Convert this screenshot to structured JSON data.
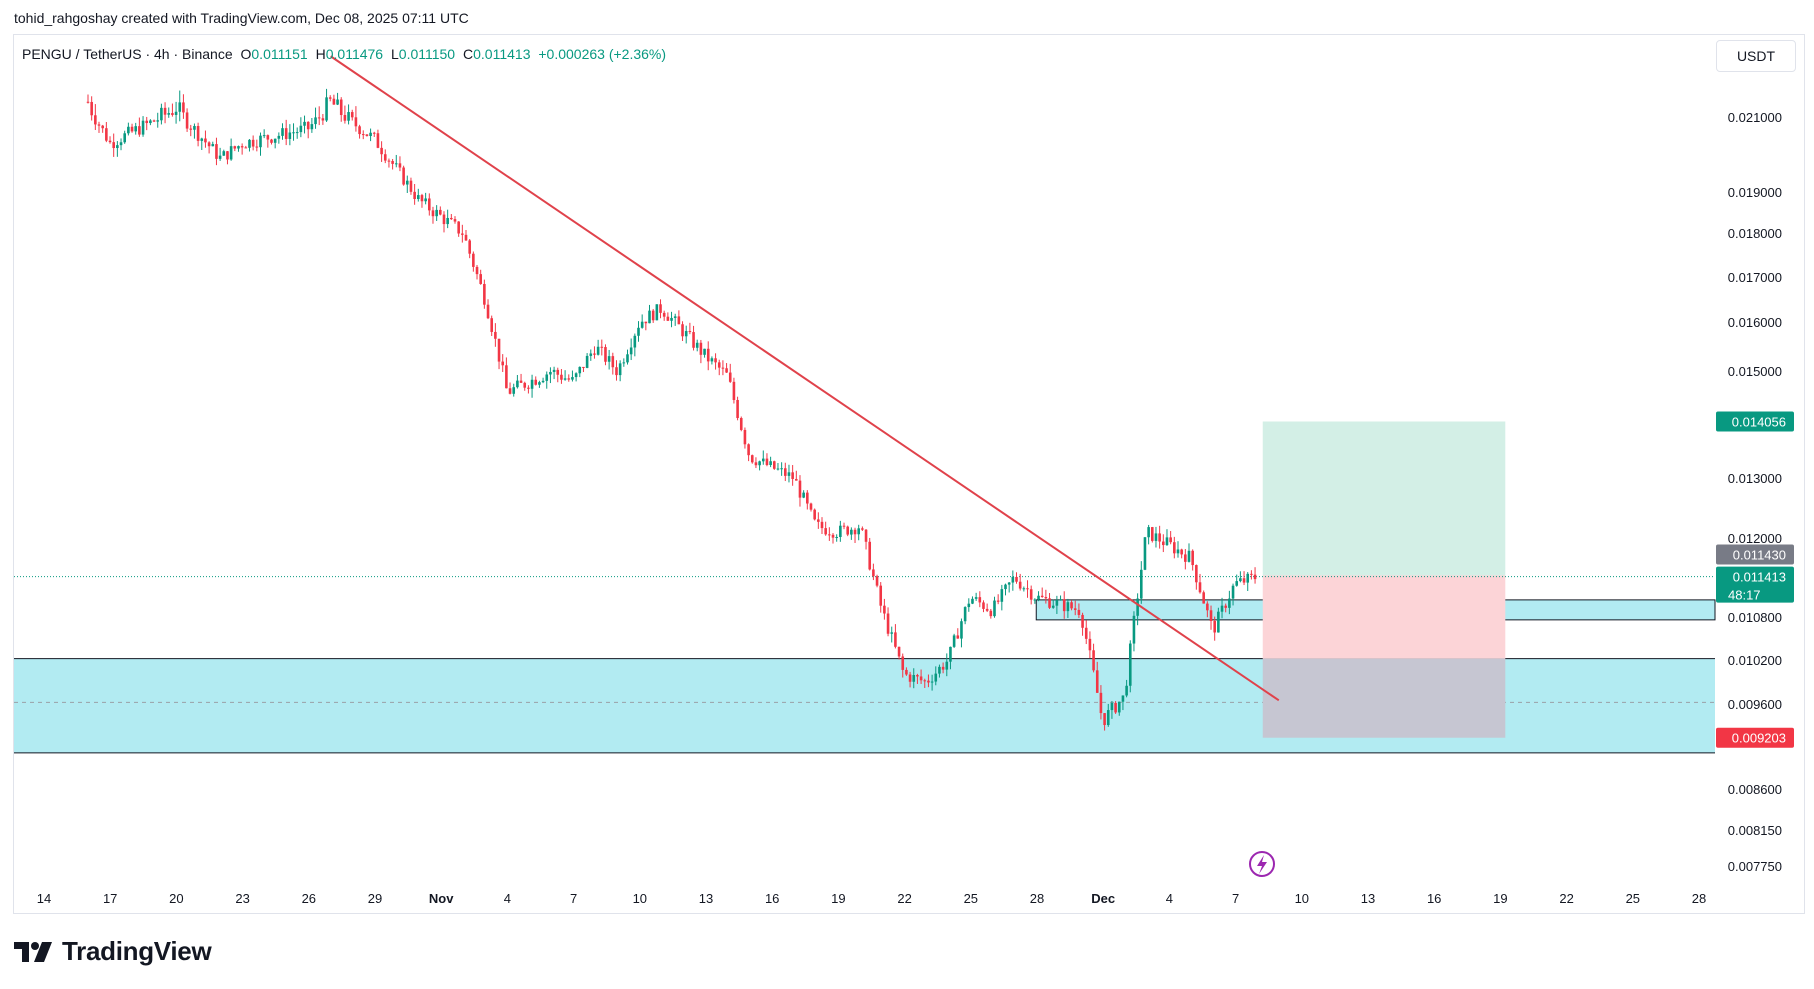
{
  "header": {
    "attribution": "tohid_rahgoshay created with TradingView.com, Dec 08, 2025 07:11 UTC"
  },
  "legend": {
    "symbol": "PENGU / TetherUS · 4h · Binance",
    "open_label": "O",
    "open": "0.011151",
    "high_label": "H",
    "high": "0.011476",
    "low_label": "L",
    "low": "0.011150",
    "close_label": "C",
    "close": "0.011413",
    "change": "+0.000263 (+2.36%)"
  },
  "currency_button": "USDT",
  "brand": {
    "name": "TradingView"
  },
  "colors": {
    "up": "#089981",
    "down": "#f23645",
    "trendline": "#e0424b",
    "zone": "#b2ebf2",
    "target_zone": "#d3efe6",
    "stop_zone": "#fcd4d7",
    "stop_overlap": "#c6c6d2",
    "axis_text": "#131722"
  },
  "chart_data": {
    "type": "candlestick",
    "symbol": "PENGU / TetherUS",
    "interval": "4h",
    "exchange": "Binance",
    "ylim": [
      0.0075,
      0.0226
    ],
    "y_ticks": [
      "0.021000",
      "0.019000",
      "0.018000",
      "0.017000",
      "0.016000",
      "0.015000",
      "0.013000",
      "0.012000",
      "0.010800",
      "0.010200",
      "0.009600",
      "0.008600",
      "0.008150",
      "0.007750"
    ],
    "x_ticks": [
      "14",
      "17",
      "20",
      "23",
      "26",
      "29",
      "Nov",
      "4",
      "7",
      "10",
      "13",
      "16",
      "19",
      "22",
      "25",
      "28",
      "Dec",
      "4",
      "7",
      "10",
      "13",
      "16",
      "19",
      "22",
      "25",
      "28"
    ],
    "price_labels": {
      "target": "0.014056",
      "prev_close": "0.011430",
      "last": "0.011413",
      "countdown": "48:17",
      "stop": "0.009203"
    },
    "ohlc_last": {
      "open": 0.011151,
      "high": 0.011476,
      "low": 0.01115,
      "close": 0.011413,
      "change": 0.000263,
      "change_pct": 2.36
    },
    "candles_approx_close": [
      {
        "date": "Oct 14",
        "close": 0.0216
      },
      {
        "date": "Oct 16",
        "close": 0.0213
      },
      {
        "date": "Oct 17",
        "close": 0.0203
      },
      {
        "date": "Oct 20",
        "close": 0.0212
      },
      {
        "date": "Oct 22",
        "close": 0.0199
      },
      {
        "date": "Oct 23",
        "close": 0.0203
      },
      {
        "date": "Oct 26",
        "close": 0.0207
      },
      {
        "date": "Oct 27",
        "close": 0.0213
      },
      {
        "date": "Oct 29",
        "close": 0.0204
      },
      {
        "date": "Oct 31",
        "close": 0.0188
      },
      {
        "date": "Nov 2",
        "close": 0.018
      },
      {
        "date": "Nov 3",
        "close": 0.0165
      },
      {
        "date": "Nov 4",
        "close": 0.0146
      },
      {
        "date": "Nov 6",
        "close": 0.015
      },
      {
        "date": "Nov 7",
        "close": 0.0148
      },
      {
        "date": "Nov 8",
        "close": 0.0155
      },
      {
        "date": "Nov 9",
        "close": 0.015
      },
      {
        "date": "Nov 10",
        "close": 0.016
      },
      {
        "date": "Nov 11",
        "close": 0.0163
      },
      {
        "date": "Nov 13",
        "close": 0.0153
      },
      {
        "date": "Nov 14",
        "close": 0.0149
      },
      {
        "date": "Nov 15",
        "close": 0.0134
      },
      {
        "date": "Nov 17",
        "close": 0.013
      },
      {
        "date": "Nov 18",
        "close": 0.0122
      },
      {
        "date": "Nov 19",
        "close": 0.0121
      },
      {
        "date": "Nov 20",
        "close": 0.0122
      },
      {
        "date": "Nov 21",
        "close": 0.0109
      },
      {
        "date": "Nov 22",
        "close": 0.01
      },
      {
        "date": "Nov 23",
        "close": 0.0099
      },
      {
        "date": "Nov 24",
        "close": 0.0102
      },
      {
        "date": "Nov 25",
        "close": 0.0111
      },
      {
        "date": "Nov 26",
        "close": 0.0109
      },
      {
        "date": "Nov 27",
        "close": 0.0114
      },
      {
        "date": "Nov 28",
        "close": 0.0111
      },
      {
        "date": "Nov 29",
        "close": 0.011
      },
      {
        "date": "Nov 30",
        "close": 0.0109
      },
      {
        "date": "Dec 1",
        "close": 0.0094
      },
      {
        "date": "Dec 2",
        "close": 0.0097
      },
      {
        "date": "Dec 3",
        "close": 0.0121
      },
      {
        "date": "Dec 4",
        "close": 0.0119
      },
      {
        "date": "Dec 5",
        "close": 0.0117
      },
      {
        "date": "Dec 6",
        "close": 0.0106
      },
      {
        "date": "Dec 7",
        "close": 0.0113
      },
      {
        "date": "Dec 8",
        "close": 0.011413
      }
    ],
    "trendline": {
      "from": {
        "date": "Oct 27",
        "price": 0.0222
      },
      "to": {
        "date": "Dec 9",
        "price": 0.00965
      }
    },
    "zones": [
      {
        "name": "demand-zone",
        "top": 0.01022,
        "bottom": 0.009025
      },
      {
        "name": "breakout-box",
        "from_date": "Nov 28",
        "top": 0.01106,
        "bottom": 0.01076
      }
    ],
    "position": {
      "entry": 0.01143,
      "target": 0.014056,
      "stop": 0.009203,
      "from_date": "Dec 8",
      "to_date": "Dec 19"
    },
    "grid": false,
    "legend_position": "top-left"
  }
}
